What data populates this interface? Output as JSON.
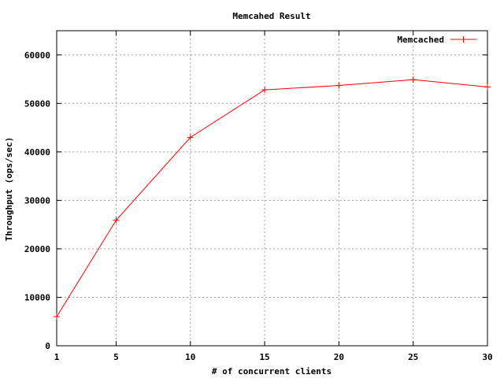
{
  "chart_data": {
    "type": "line",
    "title": "Memcahed Result",
    "xlabel": "# of concurrent clients",
    "ylabel": "Throughput (ops/sec)",
    "x_ticks": [
      1,
      5,
      10,
      15,
      20,
      25,
      30
    ],
    "y_ticks": [
      0,
      10000,
      20000,
      30000,
      40000,
      50000,
      60000
    ],
    "xlim": [
      1,
      30
    ],
    "ylim": [
      0,
      65000
    ],
    "grid": true,
    "legend_position": "top-right",
    "series": [
      {
        "name": "Memcached",
        "color": "#ff0000",
        "marker": "plus",
        "x": [
          1,
          5,
          10,
          15,
          20,
          25,
          30
        ],
        "y": [
          6000,
          25900,
          43000,
          52800,
          53700,
          54900,
          53400
        ]
      }
    ]
  }
}
